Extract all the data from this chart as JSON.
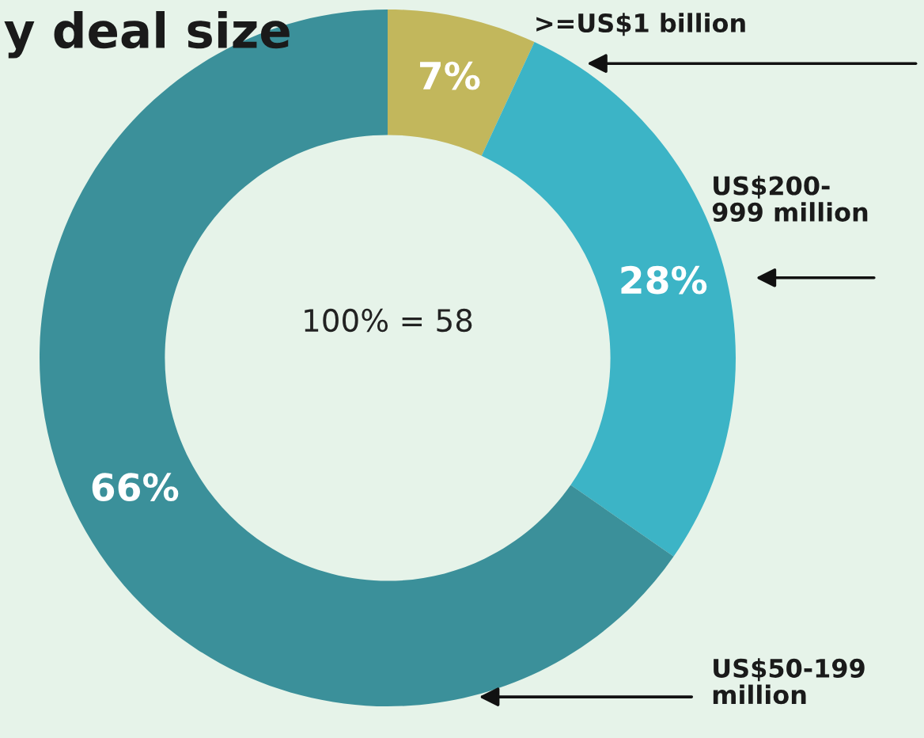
{
  "chart_data": {
    "type": "donut",
    "title": "y deal size",
    "categories": [
      ">=US$1 billion",
      "US$200-\n999 million",
      "US$50-199\nmillion"
    ],
    "values": [
      7,
      28,
      66
    ],
    "colors": [
      "#c2b75c",
      "#3cb4c6",
      "#3b909a"
    ],
    "value_labels": [
      "7%",
      "28%",
      "66%"
    ],
    "annotations": [
      "100% = 58"
    ]
  }
}
